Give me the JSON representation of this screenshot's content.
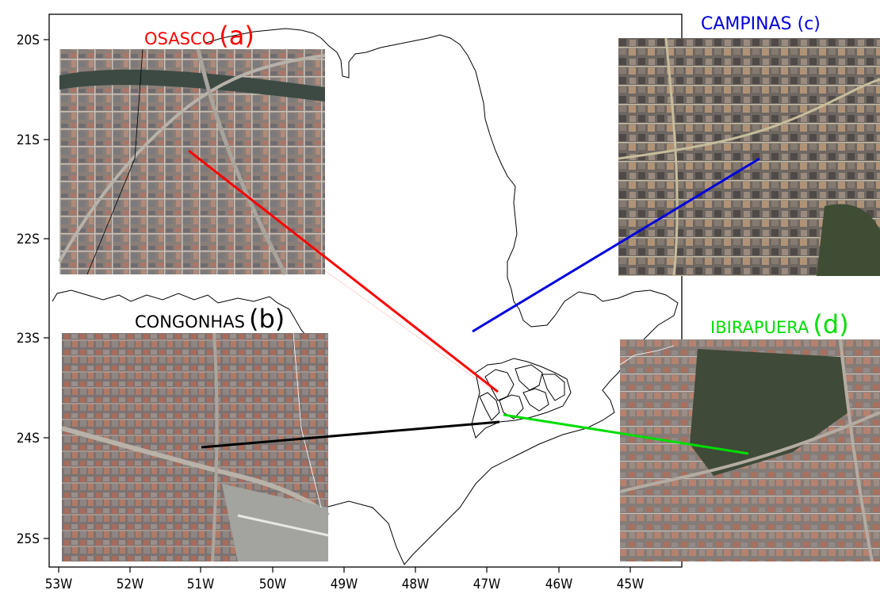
{
  "map": {
    "lat_ticks": [
      "20S",
      "21S",
      "22S",
      "23S",
      "24S",
      "25S"
    ],
    "lon_ticks": [
      "53W",
      "52W",
      "51W",
      "50W",
      "49W",
      "48W",
      "47W",
      "46W",
      "45W"
    ],
    "extent": {
      "lon_min": -53.1,
      "lon_max": -44.3,
      "lat_min": -25.3,
      "lat_max": -19.7
    },
    "frame_color": "#000000"
  },
  "panels": [
    {
      "id": "a",
      "name": "OSASCO",
      "tag": "(a)",
      "color": "#ff0000",
      "site": "Osasco"
    },
    {
      "id": "b",
      "name": "CONGONHAS",
      "tag": "(b)",
      "color": "#000000",
      "site": "Congonhas"
    },
    {
      "id": "c",
      "name": "CAMPINAS",
      "tag": "(c)",
      "color": "#0000dd",
      "site": "Campinas"
    },
    {
      "id": "d",
      "name": "IBIRAPUERA",
      "tag": "(d)",
      "color": "#00dd00",
      "site": "Ibirapuera"
    }
  ]
}
